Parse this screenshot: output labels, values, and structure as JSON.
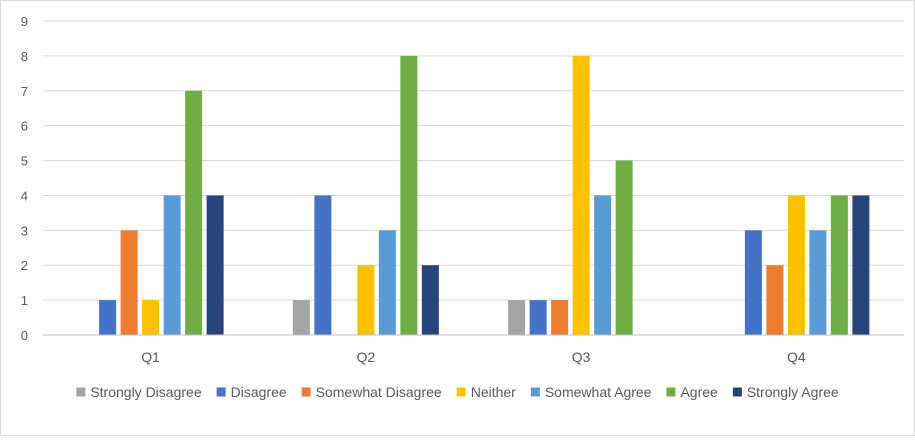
{
  "chart_data": {
    "type": "bar",
    "categories": [
      "Q1",
      "Q2",
      "Q3",
      "Q4"
    ],
    "ylim": [
      0,
      9
    ],
    "yticks": [
      0,
      1,
      2,
      3,
      4,
      5,
      6,
      7,
      8,
      9
    ],
    "grid": true,
    "legend_position": "bottom",
    "series": [
      {
        "name": "Strongly Disagree",
        "color": "#a5a5a5",
        "values": [
          0,
          1,
          1,
          0
        ]
      },
      {
        "name": "Disagree",
        "color": "#4472c4",
        "values": [
          1,
          4,
          1,
          3
        ]
      },
      {
        "name": "Somewhat Disagree",
        "color": "#ed7d31",
        "values": [
          3,
          0,
          1,
          2
        ]
      },
      {
        "name": "Neither",
        "color": "#ffc000",
        "values": [
          1,
          2,
          8,
          4
        ]
      },
      {
        "name": "Somewhat Agree",
        "color": "#5b9bd5",
        "values": [
          4,
          3,
          4,
          3
        ]
      },
      {
        "name": "Agree",
        "color": "#70ad47",
        "values": [
          7,
          8,
          5,
          4
        ]
      },
      {
        "name": "Strongly Agree",
        "color": "#264478",
        "values": [
          4,
          2,
          0,
          4
        ]
      }
    ]
  }
}
